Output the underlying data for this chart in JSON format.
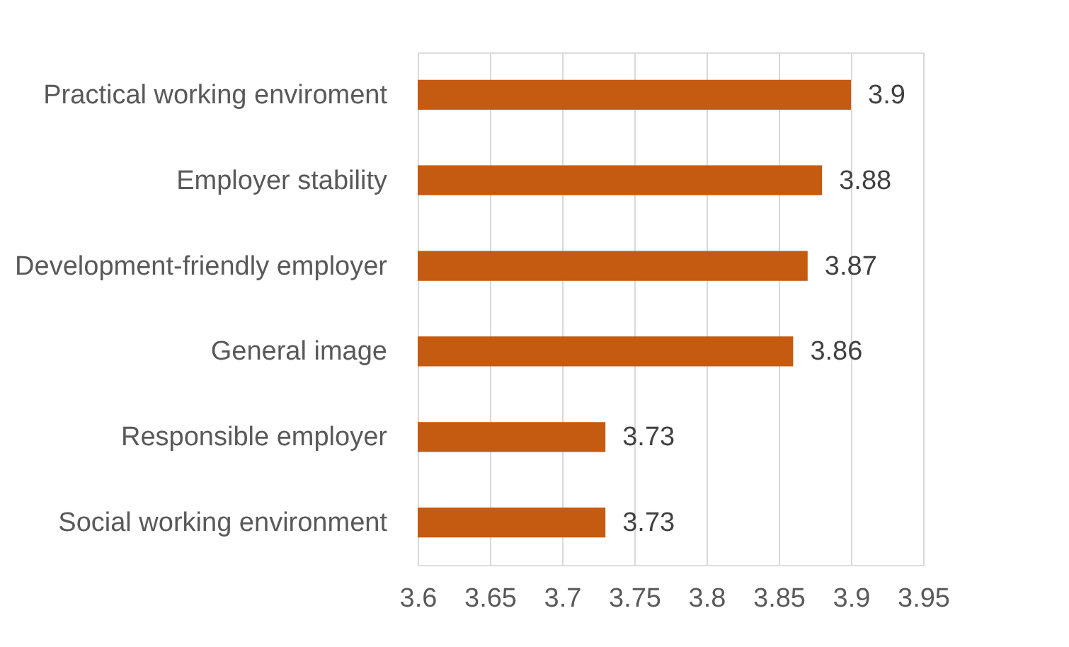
{
  "chart_data": {
    "type": "bar",
    "orientation": "horizontal",
    "categories": [
      "Practical working enviroment",
      "Employer stability",
      "Development-friendly employer",
      "General image",
      "Responsible employer",
      "Social working environment"
    ],
    "values": [
      3.9,
      3.88,
      3.87,
      3.86,
      3.73,
      3.73
    ],
    "color": "#c55a11",
    "xlim": [
      3.6,
      3.95
    ],
    "xticks": [
      3.6,
      3.65,
      3.7,
      3.75,
      3.8,
      3.85,
      3.9,
      3.95
    ],
    "grid": "x",
    "data_labels": true
  }
}
